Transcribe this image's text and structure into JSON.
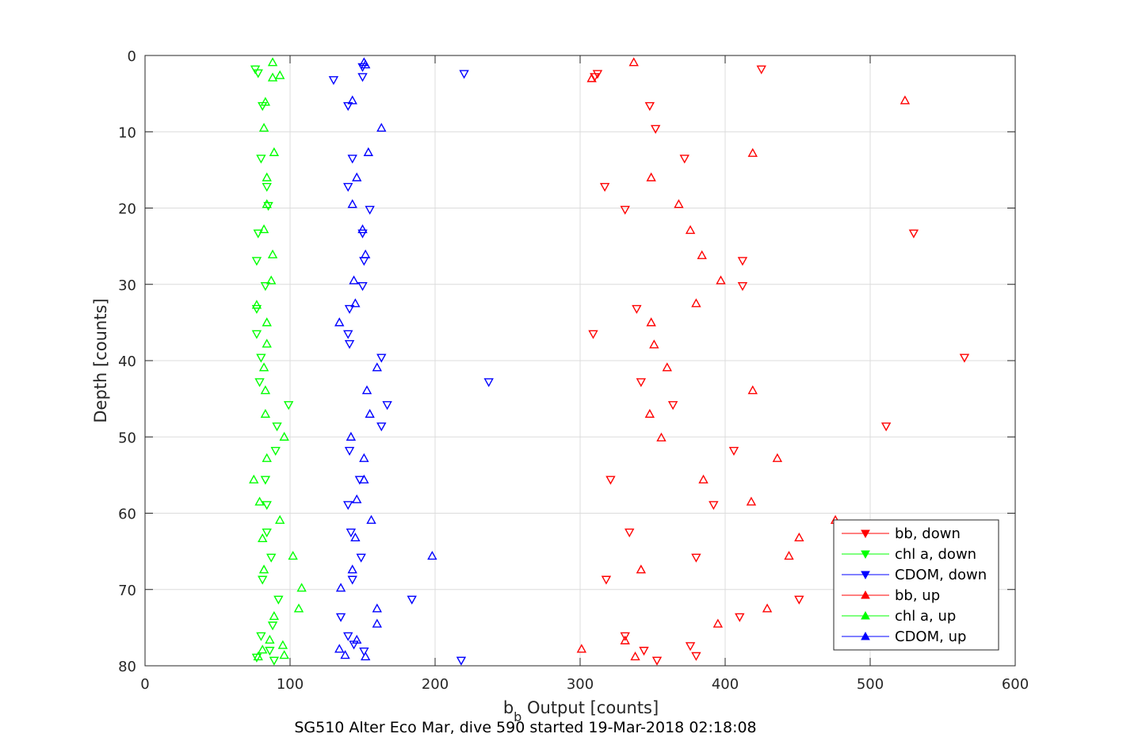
{
  "chart_data": {
    "type": "scatter",
    "xlabel": {
      "main": "b",
      "sub": "b",
      "rest": " Output [counts]"
    },
    "ylabel": "Depth [counts]",
    "caption": "SG510 Alter Eco Mar, dive 590 started 19-Mar-2018 02:18:08",
    "xlim": [
      0,
      600
    ],
    "ylim": [
      0,
      80
    ],
    "y_reversed": true,
    "grid": true,
    "xticks": [
      0,
      100,
      200,
      300,
      400,
      500,
      600
    ],
    "yticks": [
      0,
      10,
      20,
      30,
      40,
      50,
      60,
      70,
      80
    ],
    "legend_placement": "bottom-right",
    "series": [
      {
        "name": "bb, down",
        "color": "#ff0000",
        "marker": "triangle-down",
        "points": [
          [
            425,
            1.8
          ],
          [
            312,
            2.4
          ],
          [
            310,
            2.8
          ],
          [
            348,
            6.6
          ],
          [
            352,
            9.6
          ],
          [
            372,
            13.5
          ],
          [
            317,
            17.2
          ],
          [
            331,
            20.2
          ],
          [
            530,
            23.3
          ],
          [
            412,
            26.9
          ],
          [
            412,
            30.2
          ],
          [
            339,
            33.2
          ],
          [
            309,
            36.5
          ],
          [
            565,
            39.6
          ],
          [
            342,
            42.8
          ],
          [
            364,
            45.8
          ],
          [
            511,
            48.6
          ],
          [
            406,
            51.8
          ],
          [
            321,
            55.6
          ],
          [
            392,
            58.9
          ],
          [
            334,
            62.5
          ],
          [
            380,
            65.8
          ],
          [
            318,
            68.7
          ],
          [
            451,
            71.3
          ],
          [
            410,
            73.6
          ],
          [
            331,
            76.1
          ],
          [
            344,
            78.0
          ],
          [
            376,
            77.4
          ],
          [
            380,
            78.7
          ],
          [
            353,
            79.3
          ]
        ]
      },
      {
        "name": "chl a, down",
        "color": "#00ff00",
        "marker": "triangle-down",
        "points": [
          [
            76,
            1.8
          ],
          [
            78,
            2.3
          ],
          [
            81,
            6.6
          ],
          [
            80,
            13.5
          ],
          [
            84,
            17.2
          ],
          [
            85,
            19.7
          ],
          [
            78,
            23.3
          ],
          [
            77,
            26.9
          ],
          [
            83,
            30.2
          ],
          [
            77,
            33.2
          ],
          [
            77,
            36.5
          ],
          [
            80,
            39.6
          ],
          [
            79,
            42.8
          ],
          [
            99,
            45.8
          ],
          [
            91,
            48.6
          ],
          [
            90,
            51.8
          ],
          [
            83,
            55.6
          ],
          [
            84,
            58.9
          ],
          [
            84,
            62.5
          ],
          [
            87,
            65.8
          ],
          [
            81,
            68.7
          ],
          [
            92,
            71.3
          ],
          [
            88,
            74.7
          ],
          [
            80,
            76.1
          ],
          [
            86,
            78.0
          ],
          [
            89,
            79.3
          ],
          [
            77,
            78.9
          ]
        ]
      },
      {
        "name": "CDOM, down",
        "color": "#0000ff",
        "marker": "triangle-down",
        "points": [
          [
            150,
            1.5
          ],
          [
            220,
            2.4
          ],
          [
            150,
            2.8
          ],
          [
            130,
            3.2
          ],
          [
            140,
            6.6
          ],
          [
            143,
            13.5
          ],
          [
            140,
            17.2
          ],
          [
            155,
            20.2
          ],
          [
            150,
            23.3
          ],
          [
            151,
            26.9
          ],
          [
            150,
            30.2
          ],
          [
            141,
            33.2
          ],
          [
            140,
            36.5
          ],
          [
            141,
            37.8
          ],
          [
            163,
            39.6
          ],
          [
            237,
            42.8
          ],
          [
            167,
            45.8
          ],
          [
            163,
            48.6
          ],
          [
            141,
            51.8
          ],
          [
            148,
            55.6
          ],
          [
            140,
            58.9
          ],
          [
            142,
            62.5
          ],
          [
            149,
            65.8
          ],
          [
            143,
            68.7
          ],
          [
            184,
            71.3
          ],
          [
            135,
            73.6
          ],
          [
            140,
            76.1
          ],
          [
            144,
            77.2
          ],
          [
            151,
            78.1
          ],
          [
            218,
            79.3
          ]
        ]
      },
      {
        "name": "bb, up",
        "color": "#ff0000",
        "marker": "triangle-up",
        "points": [
          [
            337,
            0.9
          ],
          [
            308,
            3.0
          ],
          [
            524,
            5.9
          ],
          [
            419,
            12.8
          ],
          [
            349,
            16.0
          ],
          [
            368,
            19.5
          ],
          [
            376,
            22.9
          ],
          [
            384,
            26.2
          ],
          [
            397,
            29.5
          ],
          [
            380,
            32.5
          ],
          [
            349,
            35.0
          ],
          [
            351,
            37.9
          ],
          [
            360,
            40.9
          ],
          [
            419,
            43.9
          ],
          [
            348,
            47.0
          ],
          [
            356,
            50.1
          ],
          [
            436,
            52.8
          ],
          [
            385,
            55.6
          ],
          [
            418,
            58.5
          ],
          [
            476,
            60.9
          ],
          [
            451,
            63.2
          ],
          [
            444,
            65.6
          ],
          [
            342,
            67.4
          ],
          [
            429,
            72.5
          ],
          [
            395,
            74.5
          ],
          [
            331,
            76.7
          ],
          [
            301,
            77.8
          ],
          [
            338,
            78.8
          ]
        ]
      },
      {
        "name": "chl a, up",
        "color": "#00ff00",
        "marker": "triangle-up",
        "points": [
          [
            88,
            0.9
          ],
          [
            93,
            2.6
          ],
          [
            88,
            2.9
          ],
          [
            83,
            6.1
          ],
          [
            82,
            9.5
          ],
          [
            89,
            12.7
          ],
          [
            84,
            16.0
          ],
          [
            84,
            19.5
          ],
          [
            82,
            22.8
          ],
          [
            88,
            26.1
          ],
          [
            87,
            29.5
          ],
          [
            77,
            32.7
          ],
          [
            84,
            35.0
          ],
          [
            84,
            37.8
          ],
          [
            82,
            40.9
          ],
          [
            83,
            43.9
          ],
          [
            83,
            47.0
          ],
          [
            96,
            50.0
          ],
          [
            84,
            52.8
          ],
          [
            75,
            55.6
          ],
          [
            79,
            58.5
          ],
          [
            93,
            60.9
          ],
          [
            81,
            63.3
          ],
          [
            102,
            65.6
          ],
          [
            82,
            67.4
          ],
          [
            108,
            69.8
          ],
          [
            106,
            72.5
          ],
          [
            89,
            73.5
          ],
          [
            86,
            76.6
          ],
          [
            95,
            77.3
          ],
          [
            81,
            77.9
          ],
          [
            96,
            78.6
          ],
          [
            78,
            78.8
          ]
        ]
      },
      {
        "name": "CDOM, up",
        "color": "#0000ff",
        "marker": "triangle-up",
        "points": [
          [
            151,
            0.9
          ],
          [
            152,
            1.2
          ],
          [
            143,
            5.9
          ],
          [
            163,
            9.5
          ],
          [
            154,
            12.7
          ],
          [
            146,
            16.0
          ],
          [
            143,
            19.5
          ],
          [
            150,
            22.8
          ],
          [
            152,
            26.1
          ],
          [
            144,
            29.5
          ],
          [
            145,
            32.5
          ],
          [
            134,
            35.0
          ],
          [
            160,
            40.9
          ],
          [
            153,
            43.9
          ],
          [
            155,
            47.0
          ],
          [
            142,
            50.0
          ],
          [
            151,
            52.8
          ],
          [
            151,
            55.6
          ],
          [
            146,
            58.2
          ],
          [
            156,
            60.9
          ],
          [
            145,
            63.2
          ],
          [
            198,
            65.6
          ],
          [
            143,
            67.4
          ],
          [
            135,
            69.8
          ],
          [
            160,
            72.5
          ],
          [
            160,
            74.5
          ],
          [
            146,
            76.6
          ],
          [
            134,
            77.8
          ],
          [
            138,
            78.6
          ],
          [
            152,
            78.8
          ]
        ]
      }
    ]
  }
}
